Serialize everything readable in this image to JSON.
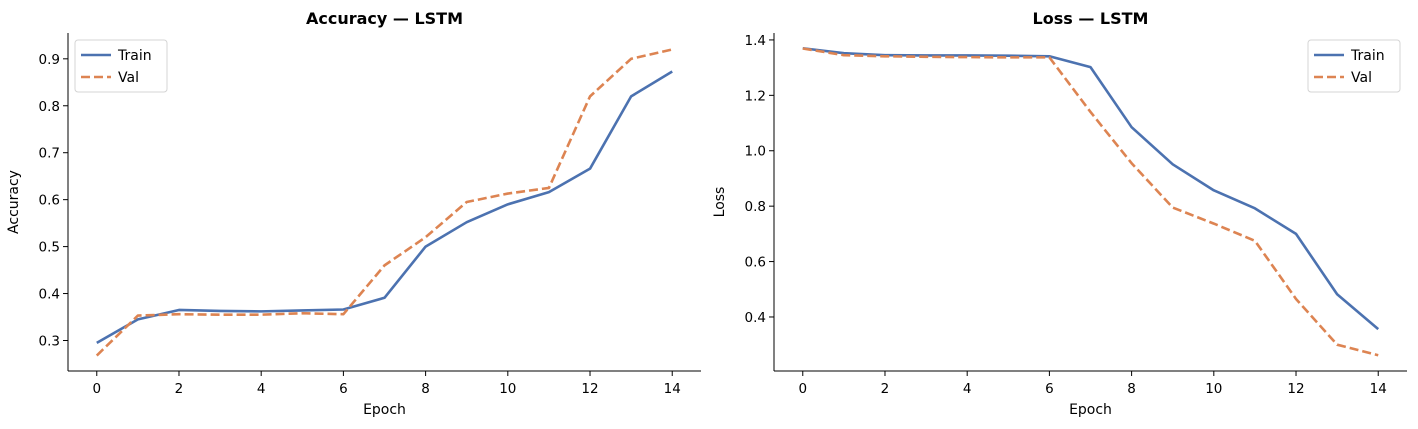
{
  "chart_data": [
    {
      "type": "line",
      "title": "Accuracy — LSTM",
      "xlabel": "Epoch",
      "ylabel": "Accuracy",
      "xlim": [
        -0.7,
        14.7
      ],
      "ylim": [
        0.235,
        0.955
      ],
      "xticks": [
        0,
        2,
        4,
        6,
        8,
        10,
        12,
        14
      ],
      "yticks": [
        0.3,
        0.4,
        0.5,
        0.6,
        0.7,
        0.8,
        0.9
      ],
      "grid": false,
      "legend": "top-left",
      "x": [
        0,
        1,
        2,
        3,
        4,
        5,
        6,
        7,
        8,
        9,
        10,
        11,
        12,
        13,
        14
      ],
      "series": [
        {
          "name": "Train",
          "style": "solid",
          "color": "#4c72b0",
          "values": [
            0.295,
            0.345,
            0.365,
            0.363,
            0.362,
            0.364,
            0.366,
            0.391,
            0.5,
            0.552,
            0.59,
            0.616,
            0.666,
            0.82,
            0.873
          ]
        },
        {
          "name": "Val",
          "style": "dashed",
          "color": "#dd8452",
          "values": [
            0.268,
            0.353,
            0.356,
            0.355,
            0.355,
            0.358,
            0.356,
            0.46,
            0.52,
            0.595,
            0.613,
            0.625,
            0.82,
            0.9,
            0.92
          ]
        }
      ]
    },
    {
      "type": "line",
      "title": "Loss — LSTM",
      "xlabel": "Epoch",
      "ylabel": "Loss",
      "xlim": [
        -0.7,
        14.7
      ],
      "ylim": [
        0.205,
        1.425
      ],
      "xticks": [
        0,
        2,
        4,
        6,
        8,
        10,
        12,
        14
      ],
      "yticks": [
        0.4,
        0.6,
        0.8,
        1.0,
        1.2,
        1.4
      ],
      "grid": false,
      "legend": "top-right",
      "x": [
        0,
        1,
        2,
        3,
        4,
        5,
        6,
        7,
        8,
        9,
        10,
        11,
        12,
        13,
        14
      ],
      "series": [
        {
          "name": "Train",
          "style": "solid",
          "color": "#4c72b0",
          "values": [
            1.37,
            1.352,
            1.345,
            1.344,
            1.344,
            1.343,
            1.341,
            1.302,
            1.085,
            0.951,
            0.857,
            0.792,
            0.7,
            0.482,
            0.356
          ]
        },
        {
          "name": "Val",
          "style": "dashed",
          "color": "#dd8452",
          "values": [
            1.369,
            1.345,
            1.341,
            1.339,
            1.338,
            1.337,
            1.337,
            1.14,
            0.955,
            0.795,
            0.737,
            0.675,
            0.465,
            0.3,
            0.262
          ]
        }
      ]
    }
  ]
}
